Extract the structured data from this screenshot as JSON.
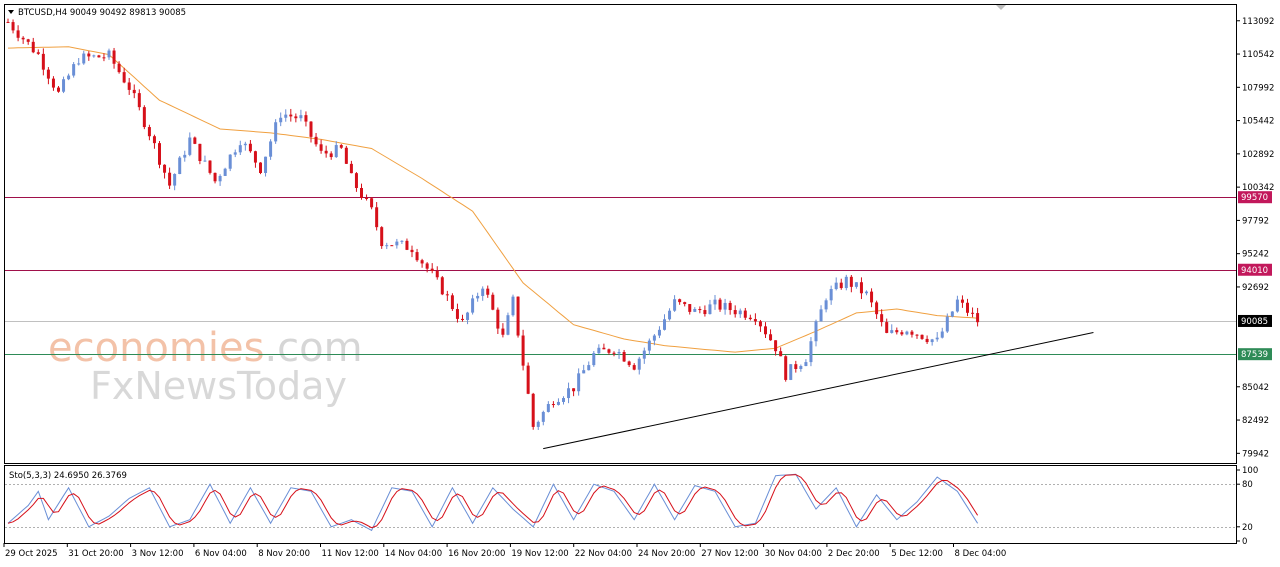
{
  "header": {
    "symbol_label": "BTCUSD,H4  90049 90492 89813 90085",
    "ohlc": {
      "open": 90049,
      "high": 90492,
      "low": 89813,
      "close": 90085
    }
  },
  "watermark": {
    "line1_a": "economies",
    "line1_b": ".com",
    "line2": "FxNewsToday"
  },
  "price_axis": {
    "ticks": [
      113092,
      110542,
      107992,
      105442,
      102892,
      100342,
      97792,
      95242,
      92692,
      85042,
      82492,
      79942
    ],
    "ymin": 79942,
    "ymax": 114500
  },
  "levels": [
    {
      "name": "resistance-1",
      "label": "99570",
      "value": 99570,
      "color": "#a0104a",
      "tag_bg": "#c2185b"
    },
    {
      "name": "resistance-2",
      "label": "94010",
      "value": 94010,
      "color": "#a0104a",
      "tag_bg": "#c2185b"
    },
    {
      "name": "current-price",
      "label": "90085",
      "value": 90085,
      "color": "#c0c0c0",
      "tag_bg": "#000000"
    },
    {
      "name": "support-1",
      "label": "87539",
      "value": 87539,
      "color": "#2e8b57",
      "tag_bg": "#2e8b57"
    }
  ],
  "trendline": {
    "start": {
      "bar": 104,
      "price": 80300
    },
    "end": {
      "bar": 209,
      "price": 89200
    }
  },
  "oscillator": {
    "label": "Sto(5,3,3) 24.6950 26.3769",
    "k": 24.695,
    "d": 26.3769,
    "ticks": [
      "100",
      "80",
      "20",
      "0"
    ],
    "upper": 80,
    "lower": 20
  },
  "time_axis": {
    "labels": [
      "29 Oct 2025",
      "31 Oct 20:00",
      "3 Nov 12:00",
      "6 Nov 04:00",
      "8 Nov 20:00",
      "11 Nov 12:00",
      "14 Nov 04:00",
      "16 Nov 20:00",
      "19 Nov 12:00",
      "22 Nov 04:00",
      "24 Nov 20:00",
      "27 Nov 12:00",
      "30 Nov 04:00",
      "2 Dec 20:00",
      "5 Dec 12:00",
      "8 Dec 04:00"
    ]
  },
  "chart_data": {
    "type": "candlestick",
    "symbol": "BTCUSD",
    "timeframe": "H4",
    "anchors": [
      [
        0,
        113000
      ],
      [
        6,
        110500
      ],
      [
        10,
        107500
      ],
      [
        14,
        110200
      ],
      [
        20,
        110400
      ],
      [
        24,
        108000
      ],
      [
        28,
        104500
      ],
      [
        32,
        100500
      ],
      [
        36,
        104000
      ],
      [
        41,
        100800
      ],
      [
        46,
        104000
      ],
      [
        50,
        101800
      ],
      [
        54,
        106000
      ],
      [
        58,
        105600
      ],
      [
        62,
        102900
      ],
      [
        66,
        103200
      ],
      [
        68,
        101000
      ],
      [
        72,
        98500
      ],
      [
        74,
        96200
      ],
      [
        80,
        95700
      ],
      [
        86,
        92500
      ],
      [
        90,
        89900
      ],
      [
        94,
        92900
      ],
      [
        98,
        88800
      ],
      [
        100,
        91600
      ],
      [
        104,
        82000
      ],
      [
        108,
        84100
      ],
      [
        112,
        85000
      ],
      [
        116,
        87500
      ],
      [
        120,
        88000
      ],
      [
        124,
        86700
      ],
      [
        128,
        89000
      ],
      [
        132,
        91500
      ],
      [
        136,
        90800
      ],
      [
        140,
        91300
      ],
      [
        144,
        90900
      ],
      [
        148,
        90500
      ],
      [
        152,
        88100
      ],
      [
        154,
        86000
      ],
      [
        158,
        87300
      ],
      [
        162,
        92000
      ],
      [
        166,
        93200
      ],
      [
        170,
        92100
      ],
      [
        174,
        89000
      ],
      [
        178,
        89500
      ],
      [
        184,
        88500
      ],
      [
        188,
        91600
      ],
      [
        192,
        90085
      ]
    ],
    "ma_anchors": [
      [
        0,
        111000
      ],
      [
        12,
        111100
      ],
      [
        20,
        110500
      ],
      [
        30,
        107000
      ],
      [
        42,
        104800
      ],
      [
        52,
        104500
      ],
      [
        62,
        104000
      ],
      [
        72,
        103300
      ],
      [
        82,
        101000
      ],
      [
        92,
        98500
      ],
      [
        102,
        93000
      ],
      [
        112,
        89800
      ],
      [
        122,
        88700
      ],
      [
        130,
        88200
      ],
      [
        138,
        87900
      ],
      [
        144,
        87700
      ],
      [
        152,
        88000
      ],
      [
        160,
        89300
      ],
      [
        168,
        90700
      ],
      [
        176,
        91000
      ],
      [
        184,
        90500
      ],
      [
        192,
        90300
      ]
    ],
    "stoch_anchors": [
      [
        0,
        25
      ],
      [
        4,
        50
      ],
      [
        6,
        70
      ],
      [
        8,
        30
      ],
      [
        12,
        75
      ],
      [
        16,
        20
      ],
      [
        20,
        35
      ],
      [
        24,
        60
      ],
      [
        28,
        75
      ],
      [
        32,
        20
      ],
      [
        36,
        30
      ],
      [
        40,
        80
      ],
      [
        44,
        25
      ],
      [
        48,
        75
      ],
      [
        52,
        25
      ],
      [
        56,
        75
      ],
      [
        60,
        70
      ],
      [
        64,
        20
      ],
      [
        68,
        30
      ],
      [
        72,
        15
      ],
      [
        76,
        75
      ],
      [
        80,
        70
      ],
      [
        84,
        20
      ],
      [
        88,
        75
      ],
      [
        92,
        25
      ],
      [
        96,
        75
      ],
      [
        100,
        45
      ],
      [
        104,
        20
      ],
      [
        108,
        80
      ],
      [
        112,
        30
      ],
      [
        116,
        80
      ],
      [
        120,
        70
      ],
      [
        124,
        30
      ],
      [
        128,
        80
      ],
      [
        132,
        30
      ],
      [
        136,
        78
      ],
      [
        140,
        70
      ],
      [
        144,
        20
      ],
      [
        148,
        25
      ],
      [
        152,
        92
      ],
      [
        156,
        94
      ],
      [
        160,
        45
      ],
      [
        164,
        75
      ],
      [
        168,
        20
      ],
      [
        172,
        65
      ],
      [
        176,
        30
      ],
      [
        180,
        55
      ],
      [
        184,
        90
      ],
      [
        188,
        70
      ],
      [
        192,
        25
      ]
    ]
  }
}
